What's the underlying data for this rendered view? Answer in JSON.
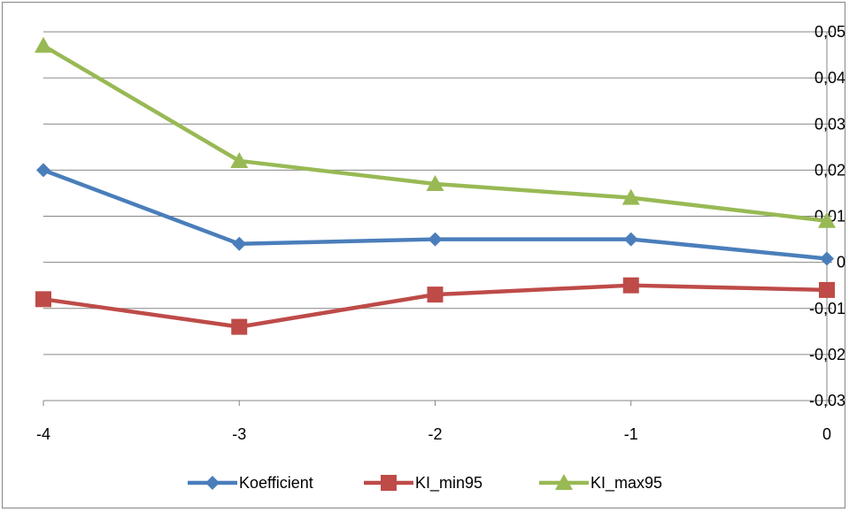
{
  "chart_data": {
    "type": "line",
    "title": "",
    "xlabel": "",
    "ylabel": "",
    "x": [
      -4,
      -3,
      -2,
      -1,
      0
    ],
    "x_tick_labels": [
      "-4",
      "-3",
      "-2",
      "-1",
      "0"
    ],
    "ylim": [
      -0.03,
      0.05
    ],
    "y_ticks": [
      -0.03,
      -0.02,
      -0.01,
      0,
      0.01,
      0.02,
      0.03,
      0.04,
      0.05
    ],
    "y_tick_labels": [
      "-0,03",
      "-0,02",
      "-0,01",
      "0",
      "0,01",
      "0,02",
      "0,03",
      "0,04",
      "0,05"
    ],
    "y_axis_side": "right",
    "grid": "horizontal",
    "legend_position": "bottom",
    "series": [
      {
        "name": "Koefficient",
        "values": [
          0.02,
          0.004,
          0.005,
          0.005,
          0.0008
        ],
        "color": "#4a7ebb",
        "marker": "diamond"
      },
      {
        "name": "KI_min95",
        "values": [
          -0.008,
          -0.014,
          -0.007,
          -0.005,
          -0.006
        ],
        "color": "#be4b48",
        "marker": "square"
      },
      {
        "name": "KI_max95",
        "values": [
          0.047,
          0.022,
          0.017,
          0.014,
          0.009
        ],
        "color": "#98b954",
        "marker": "triangle"
      }
    ]
  }
}
